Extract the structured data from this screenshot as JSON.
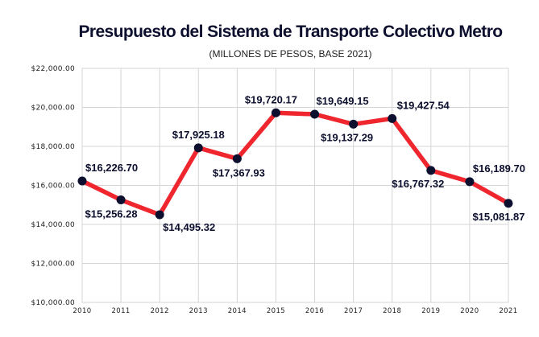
{
  "chart_data": {
    "type": "line",
    "title": "Presupuesto del Sistema de Transporte Colectivo Metro",
    "subtitle": "(MILLONES DE PESOS, BASE 2021)",
    "xlabel": "",
    "ylabel": "",
    "categories": [
      "2010",
      "2011",
      "2012",
      "2013",
      "2014",
      "2015",
      "2016",
      "2017",
      "2018",
      "2019",
      "2020",
      "2021"
    ],
    "series": [
      {
        "name": "Presupuesto",
        "values": [
          16226.7,
          15256.28,
          14495.32,
          17925.18,
          17367.93,
          19720.17,
          19649.15,
          19137.29,
          19427.54,
          16767.32,
          16189.7,
          15081.87
        ],
        "labels": [
          "$16,226.70",
          "$15,256.28",
          "$14,495.32",
          "$17,925.18",
          "$17,367.93",
          "$19,720.17",
          "$19,649.15",
          "$19,137.29",
          "$19,427.54",
          "$16,767.32",
          "$16,189.70",
          "$15,081.87"
        ],
        "label_positions": [
          "above",
          "below",
          "below",
          "above",
          "below",
          "above",
          "above",
          "below",
          "above",
          "below",
          "above",
          "below"
        ],
        "line_color": "#f0262f",
        "marker_color": "#0d0f2e"
      }
    ],
    "yticks": [
      10000,
      12000,
      14000,
      16000,
      18000,
      20000,
      22000
    ],
    "ytick_labels": [
      "$10,000.00",
      "$12,000.00",
      "$14,000.00",
      "$16,000.00",
      "$18,000.00",
      "$20,000.00",
      "$22,000.00"
    ],
    "ylim": [
      10000,
      22000
    ],
    "grid": true,
    "legend": "none"
  }
}
